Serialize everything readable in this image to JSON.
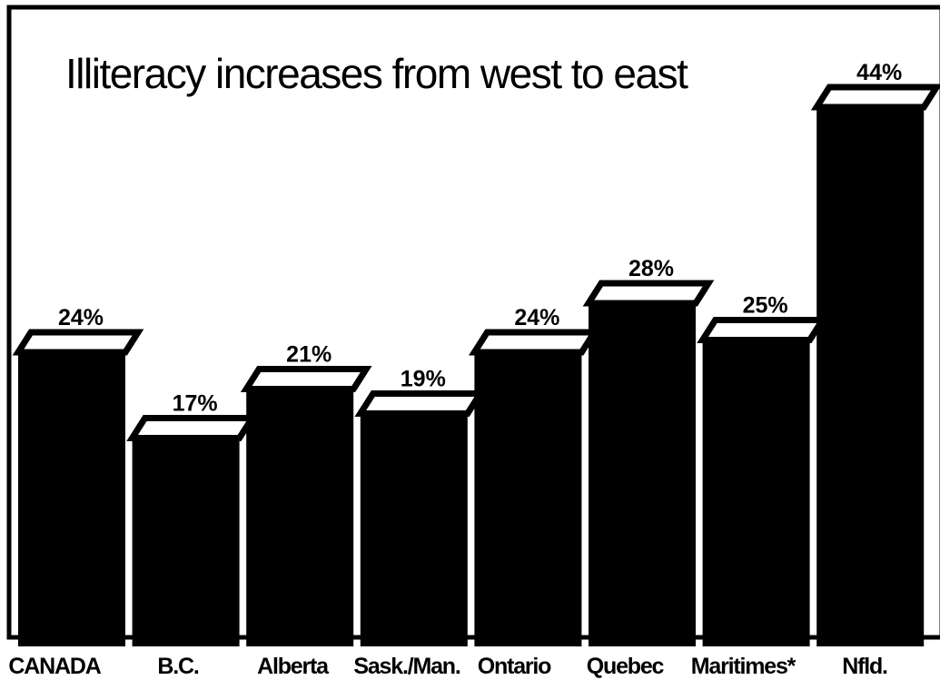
{
  "chart_data": {
    "type": "bar",
    "title": "Illiteracy increases from west to east",
    "xlabel": "",
    "ylabel": "",
    "ylim": [
      0,
      50
    ],
    "grid": false,
    "legend": "none",
    "categories": [
      "CANADA",
      "B.C.",
      "Alberta",
      "Sask./Man.",
      "Ontario",
      "Quebec",
      "Maritimes*",
      "Nfld."
    ],
    "values": [
      24,
      17,
      21,
      19,
      24,
      28,
      25,
      44
    ],
    "value_labels": [
      "24%",
      "17%",
      "21%",
      "19%",
      "24%",
      "28%",
      "25%",
      "44%"
    ],
    "colors": {
      "bar_front": "#000000",
      "bar_top": "#ffffff",
      "frame": "#000000",
      "background": "#ffffff"
    }
  }
}
